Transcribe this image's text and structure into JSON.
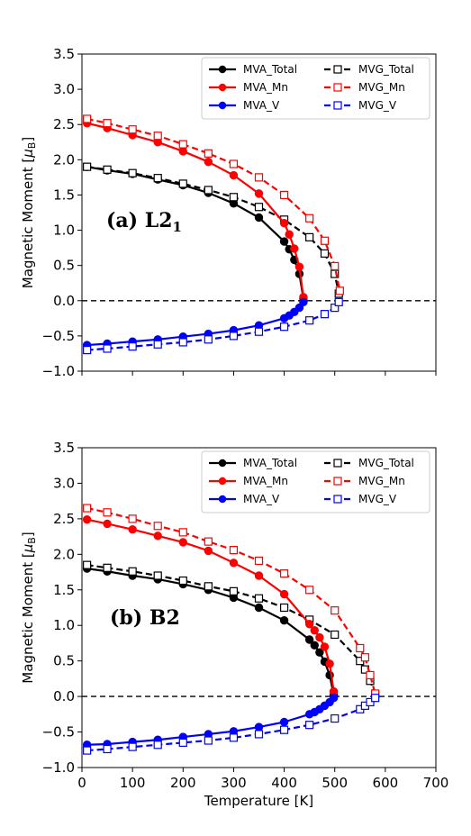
{
  "figure": {
    "ylabel_prefix": "Magnetic Moment [",
    "ylabel_mu": "μ",
    "ylabel_sub": "B",
    "ylabel_suffix": "]",
    "xlabel": "Temperature [K]"
  },
  "colors": {
    "Total": "#000000",
    "Mn": "#ff0000",
    "V": "#0000ff",
    "axis": "#000000",
    "zero_line": "#000000"
  },
  "chart_data": [
    {
      "type": "line",
      "panel_label_main": "(a) L2",
      "panel_label_sub": "1",
      "xlim": [
        0,
        700
      ],
      "ylim": [
        -1.0,
        3.5
      ],
      "xticks": [
        0,
        100,
        200,
        300,
        400,
        500,
        600,
        700
      ],
      "yticks": [
        -1.0,
        -0.5,
        0.0,
        0.5,
        1.0,
        1.5,
        2.0,
        2.5,
        3.0,
        3.5
      ],
      "show_xtick_labels": false,
      "show_xlabel": false,
      "zero_line": true,
      "grid": false,
      "legend_position": "top-right",
      "series": [
        {
          "name": "MVA_Total",
          "color_key": "Total",
          "marker": "circle",
          "linestyle": "solid",
          "x": [
            10,
            50,
            100,
            150,
            200,
            250,
            300,
            350,
            400,
            410,
            420,
            430,
            438
          ],
          "y": [
            1.9,
            1.85,
            1.8,
            1.72,
            1.64,
            1.53,
            1.38,
            1.18,
            0.84,
            0.73,
            0.58,
            0.38,
            0.03
          ]
        },
        {
          "name": "MVG_Total",
          "color_key": "Total",
          "marker": "square",
          "linestyle": "dashed",
          "x": [
            10,
            50,
            100,
            150,
            200,
            250,
            300,
            350,
            400,
            450,
            480,
            500,
            508
          ],
          "y": [
            1.9,
            1.86,
            1.81,
            1.74,
            1.66,
            1.57,
            1.47,
            1.33,
            1.15,
            0.9,
            0.67,
            0.38,
            0.1
          ]
        },
        {
          "name": "MVA_Mn",
          "color_key": "Mn",
          "marker": "circle",
          "linestyle": "solid",
          "x": [
            10,
            50,
            100,
            150,
            200,
            250,
            300,
            350,
            400,
            410,
            420,
            430,
            438
          ],
          "y": [
            2.52,
            2.45,
            2.35,
            2.25,
            2.12,
            1.97,
            1.78,
            1.52,
            1.1,
            0.94,
            0.74,
            0.48,
            0.05
          ]
        },
        {
          "name": "MVG_Mn",
          "color_key": "Mn",
          "marker": "square",
          "linestyle": "dashed",
          "x": [
            10,
            50,
            100,
            150,
            200,
            250,
            300,
            350,
            400,
            450,
            480,
            500,
            510
          ],
          "y": [
            2.58,
            2.52,
            2.43,
            2.34,
            2.22,
            2.09,
            1.94,
            1.75,
            1.5,
            1.17,
            0.85,
            0.49,
            0.14
          ]
        },
        {
          "name": "MVA_V",
          "color_key": "V",
          "marker": "circle",
          "linestyle": "solid",
          "x": [
            10,
            50,
            100,
            150,
            200,
            250,
            300,
            350,
            400,
            410,
            420,
            430,
            438
          ],
          "y": [
            -0.63,
            -0.61,
            -0.58,
            -0.55,
            -0.51,
            -0.47,
            -0.42,
            -0.35,
            -0.25,
            -0.21,
            -0.16,
            -0.1,
            -0.02
          ]
        },
        {
          "name": "MVG_V",
          "color_key": "V",
          "marker": "square",
          "linestyle": "dashed",
          "x": [
            10,
            50,
            100,
            150,
            200,
            250,
            300,
            350,
            400,
            450,
            480,
            500,
            508
          ],
          "y": [
            -0.7,
            -0.68,
            -0.65,
            -0.62,
            -0.59,
            -0.55,
            -0.5,
            -0.44,
            -0.37,
            -0.28,
            -0.19,
            -0.1,
            -0.02
          ]
        }
      ]
    },
    {
      "type": "line",
      "panel_label_main": "(b) B2",
      "panel_label_sub": "",
      "xlim": [
        0,
        700
      ],
      "ylim": [
        -1.0,
        3.5
      ],
      "xticks": [
        0,
        100,
        200,
        300,
        400,
        500,
        600,
        700
      ],
      "yticks": [
        -1.0,
        -0.5,
        0.0,
        0.5,
        1.0,
        1.5,
        2.0,
        2.5,
        3.0,
        3.5
      ],
      "show_xtick_labels": true,
      "show_xlabel": true,
      "zero_line": true,
      "grid": false,
      "legend_position": "top-right",
      "series": [
        {
          "name": "MVA_Total",
          "color_key": "Total",
          "marker": "circle",
          "linestyle": "solid",
          "x": [
            10,
            50,
            100,
            150,
            200,
            250,
            300,
            350,
            400,
            450,
            460,
            470,
            480,
            490,
            498
          ],
          "y": [
            1.8,
            1.76,
            1.7,
            1.65,
            1.58,
            1.5,
            1.39,
            1.25,
            1.07,
            0.8,
            0.72,
            0.62,
            0.49,
            0.3,
            0.02
          ]
        },
        {
          "name": "MVG_Total",
          "color_key": "Total",
          "marker": "square",
          "linestyle": "dashed",
          "x": [
            10,
            50,
            100,
            150,
            200,
            250,
            300,
            350,
            400,
            450,
            500,
            550,
            560,
            570,
            580
          ],
          "y": [
            1.85,
            1.81,
            1.76,
            1.7,
            1.63,
            1.55,
            1.48,
            1.38,
            1.25,
            1.08,
            0.87,
            0.5,
            0.38,
            0.22,
            0.03
          ]
        },
        {
          "name": "MVA_Mn",
          "color_key": "Mn",
          "marker": "circle",
          "linestyle": "solid",
          "x": [
            10,
            50,
            100,
            150,
            200,
            250,
            300,
            350,
            400,
            450,
            460,
            470,
            480,
            490,
            498
          ],
          "y": [
            2.49,
            2.43,
            2.35,
            2.26,
            2.17,
            2.05,
            1.88,
            1.7,
            1.44,
            1.02,
            0.93,
            0.83,
            0.7,
            0.46,
            0.07
          ]
        },
        {
          "name": "MVG_Mn",
          "color_key": "Mn",
          "marker": "square",
          "linestyle": "dashed",
          "x": [
            10,
            50,
            100,
            150,
            200,
            250,
            300,
            350,
            400,
            450,
            500,
            550,
            560,
            570,
            580
          ],
          "y": [
            2.65,
            2.59,
            2.5,
            2.4,
            2.31,
            2.18,
            2.06,
            1.91,
            1.73,
            1.5,
            1.21,
            0.68,
            0.55,
            0.3,
            0.04
          ]
        },
        {
          "name": "MVA_V",
          "color_key": "V",
          "marker": "circle",
          "linestyle": "solid",
          "x": [
            10,
            50,
            100,
            150,
            200,
            250,
            300,
            350,
            400,
            450,
            460,
            470,
            480,
            490,
            498
          ],
          "y": [
            -0.68,
            -0.67,
            -0.64,
            -0.61,
            -0.57,
            -0.53,
            -0.49,
            -0.43,
            -0.36,
            -0.25,
            -0.22,
            -0.18,
            -0.13,
            -0.08,
            -0.02
          ]
        },
        {
          "name": "MVG_V",
          "color_key": "V",
          "marker": "square",
          "linestyle": "dashed",
          "x": [
            10,
            50,
            100,
            150,
            200,
            250,
            300,
            350,
            400,
            450,
            500,
            550,
            560,
            570,
            580
          ],
          "y": [
            -0.76,
            -0.74,
            -0.71,
            -0.68,
            -0.65,
            -0.62,
            -0.58,
            -0.53,
            -0.47,
            -0.4,
            -0.31,
            -0.18,
            -0.13,
            -0.08,
            -0.02
          ]
        }
      ]
    }
  ],
  "legend": {
    "order": [
      "MVA_Total",
      "MVG_Total",
      "MVA_Mn",
      "MVG_Mn",
      "MVA_V",
      "MVG_V"
    ]
  }
}
